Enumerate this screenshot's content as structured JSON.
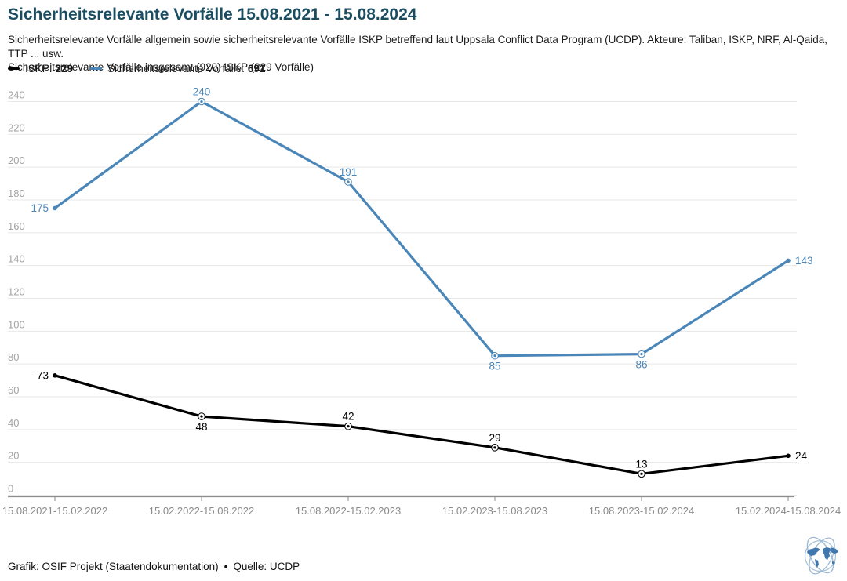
{
  "header": {
    "title": "Sicherheitsrelevante Vorfälle 15.08.2021 - 15.08.2024",
    "description": "Sicherheitsrelevante Vorfälle allgemein sowie sicherheitsrelevante Vorfälle ISKP betreffend laut Uppsala Conflict Data Program (UCDP). Akteure: Taliban, ISKP, NRF, Al-Qaida, TTP ... usw.\nSicherheitsrelevante Vorfälle insgesamt (920) ISKP (229 Vorfälle)"
  },
  "legend": [
    {
      "label": "ISKP:",
      "value": "229",
      "color": "#000000"
    },
    {
      "label": "Sicherheitsrelevante Vorfälle:",
      "value": "691",
      "color": "#4a86b8"
    }
  ],
  "chart_data": {
    "type": "line",
    "title": "Sicherheitsrelevante Vorfälle 15.08.2021 - 15.08.2024",
    "categories": [
      "15.08.2021-15.02.2022",
      "15.02.2022-15.08.2022",
      "15.08.2022-15.02.2023",
      "15.02.2023-15.08.2023",
      "15.08.2023-15.02.2024",
      "15.02.2024-15.08.2024"
    ],
    "series": [
      {
        "name": "ISKP",
        "total": 229,
        "color": "#000000",
        "values": [
          73,
          48,
          42,
          29,
          13,
          24
        ],
        "label_positions": [
          "left",
          "below",
          "above",
          "above",
          "above",
          "right"
        ]
      },
      {
        "name": "Sicherheitsrelevante Vorfälle",
        "total": 691,
        "color": "#4a86b8",
        "values": [
          175,
          240,
          191,
          85,
          86,
          143
        ],
        "label_positions": [
          "left",
          "above",
          "above",
          "below",
          "below",
          "right"
        ]
      }
    ],
    "xlabel": "",
    "ylabel": "",
    "ylim": [
      0,
      240
    ],
    "ytick_step": 20,
    "grid": true,
    "legend_position": "top-left"
  },
  "footer": {
    "credit": "Grafik: OSIF Projekt (Staatendokumentation)",
    "separator": "•",
    "source": "Quelle: UCDP"
  },
  "icons": {
    "logo": "globe-with-orbit-rings"
  },
  "colors": {
    "accent_blue": "#4a86b8",
    "series_black": "#000000",
    "title": "#1b4d61",
    "grid": "#e7e7e7",
    "axis": "#8c8c8c",
    "y_tick_label": "#a4a4a4",
    "x_tick_label": "#8a8a8a",
    "logo_continent": "#4077ae",
    "logo_ring": "#9bb9d4"
  }
}
